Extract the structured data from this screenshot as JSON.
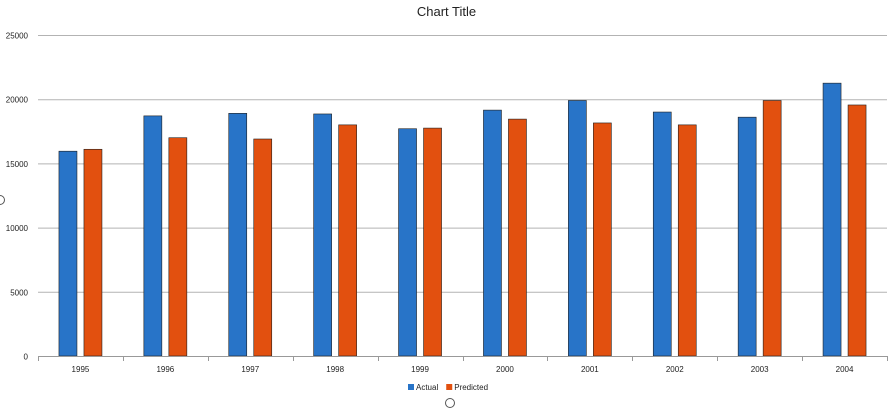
{
  "chart_data": {
    "type": "bar",
    "title": "Chart Title",
    "xlabel": "",
    "ylabel": "",
    "categories": [
      "1995",
      "1996",
      "1997",
      "1998",
      "1999",
      "2000",
      "2001",
      "2002",
      "2003",
      "2004"
    ],
    "series": [
      {
        "name": "Actual",
        "color": "#2874c8",
        "values": [
          15950,
          18700,
          18900,
          18850,
          17700,
          19150,
          19900,
          19000,
          18600,
          21250
        ]
      },
      {
        "name": "Predicted",
        "color": "#e2500f",
        "values": [
          16100,
          17000,
          16900,
          18000,
          17750,
          18450,
          18150,
          18000,
          19900,
          19550
        ]
      }
    ],
    "ylim": [
      0,
      25000
    ],
    "yticks": [
      0,
      5000,
      10000,
      15000,
      20000,
      25000
    ],
    "grid": true,
    "legend": "bottom"
  }
}
